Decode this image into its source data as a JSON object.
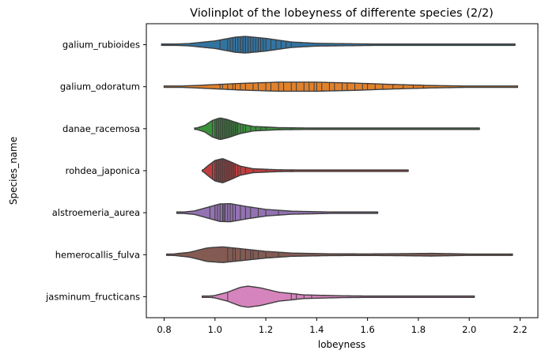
{
  "chart_data": {
    "type": "violin",
    "title": "Violinplot of the lobeyness of differente species (2/2)",
    "xlabel": "lobeyness",
    "ylabel": "Species_name",
    "xlim": [
      0.73,
      2.27
    ],
    "xticks": [
      "0.8",
      "1.0",
      "1.2",
      "1.4",
      "1.6",
      "1.8",
      "2.0",
      "2.2"
    ],
    "inner": "stick",
    "grid": false,
    "outline_color": "#3d3d3d",
    "categories": [
      "galium_rubioides",
      "galium_odoratum",
      "danae_racemosa",
      "rohdea_japonica",
      "alstroemeria_aurea",
      "hemerocallis_fulva",
      "jasminum_fructicans"
    ],
    "series": [
      {
        "category": "galium_rubioides",
        "color": "#3274a1",
        "range": [
          0.79,
          2.18
        ],
        "density": [
          [
            0.79,
            0.0
          ],
          [
            0.9,
            0.08
          ],
          [
            1.0,
            0.25
          ],
          [
            1.08,
            0.5
          ],
          [
            1.12,
            0.55
          ],
          [
            1.2,
            0.42
          ],
          [
            1.3,
            0.18
          ],
          [
            1.4,
            0.09
          ],
          [
            1.6,
            0.05
          ],
          [
            1.8,
            0.03
          ],
          [
            2.0,
            0.02
          ],
          [
            2.18,
            0.0
          ]
        ],
        "points": [
          1.02,
          1.05,
          1.06,
          1.07,
          1.08,
          1.08,
          1.09,
          1.1,
          1.1,
          1.11,
          1.11,
          1.12,
          1.12,
          1.13,
          1.13,
          1.14,
          1.15,
          1.15,
          1.16,
          1.17,
          1.18,
          1.19,
          1.2,
          1.22,
          1.24,
          1.26,
          1.28,
          1.3
        ]
      },
      {
        "category": "galium_odoratum",
        "color": "#e1812c",
        "range": [
          0.8,
          2.19
        ],
        "density": [
          [
            0.8,
            0.0
          ],
          [
            0.95,
            0.1
          ],
          [
            1.1,
            0.22
          ],
          [
            1.25,
            0.3
          ],
          [
            1.4,
            0.3
          ],
          [
            1.55,
            0.24
          ],
          [
            1.7,
            0.15
          ],
          [
            1.85,
            0.08
          ],
          [
            2.0,
            0.04
          ],
          [
            2.19,
            0.0
          ]
        ],
        "points": [
          1.02,
          1.03,
          1.05,
          1.07,
          1.08,
          1.1,
          1.12,
          1.15,
          1.17,
          1.2,
          1.22,
          1.25,
          1.27,
          1.3,
          1.32,
          1.35,
          1.37,
          1.39,
          1.4,
          1.42,
          1.45,
          1.47,
          1.5,
          1.52,
          1.55,
          1.58,
          1.6,
          1.63,
          1.66,
          1.7,
          1.74,
          1.78,
          1.82
        ]
      },
      {
        "category": "danae_racemosa",
        "color": "#3a923a",
        "range": [
          0.92,
          2.04
        ],
        "density": [
          [
            0.92,
            0.0
          ],
          [
            0.96,
            0.22
          ],
          [
            0.99,
            0.55
          ],
          [
            1.02,
            0.72
          ],
          [
            1.05,
            0.6
          ],
          [
            1.1,
            0.32
          ],
          [
            1.15,
            0.15
          ],
          [
            1.25,
            0.07
          ],
          [
            1.4,
            0.04
          ],
          [
            1.6,
            0.03
          ],
          [
            1.8,
            0.02
          ],
          [
            2.04,
            0.0
          ]
        ],
        "points": [
          0.99,
          1.0,
          1.005,
          1.01,
          1.015,
          1.02,
          1.025,
          1.03,
          1.035,
          1.04,
          1.045,
          1.05,
          1.055,
          1.06,
          1.065,
          1.07,
          1.075,
          1.08,
          1.085,
          1.09,
          1.1,
          1.11,
          1.12,
          1.14,
          1.16,
          1.18,
          1.2,
          1.25,
          1.3,
          1.4
        ]
      },
      {
        "category": "rohdea_japonica",
        "color": "#c03d3e",
        "range": [
          0.95,
          1.76
        ],
        "density": [
          [
            0.95,
            0.0
          ],
          [
            0.97,
            0.3
          ],
          [
            1.0,
            0.68
          ],
          [
            1.03,
            0.8
          ],
          [
            1.06,
            0.6
          ],
          [
            1.1,
            0.3
          ],
          [
            1.15,
            0.13
          ],
          [
            1.25,
            0.06
          ],
          [
            1.4,
            0.04
          ],
          [
            1.6,
            0.02
          ],
          [
            1.76,
            0.0
          ]
        ],
        "points": [
          0.99,
          1.0,
          1.005,
          1.01,
          1.015,
          1.02,
          1.025,
          1.03,
          1.035,
          1.04,
          1.045,
          1.05,
          1.055,
          1.06,
          1.065,
          1.07,
          1.075,
          1.08,
          1.09,
          1.1,
          1.12,
          1.15,
          1.2,
          1.3
        ]
      },
      {
        "category": "alstroemeria_aurea",
        "color": "#9372b2",
        "range": [
          0.85,
          1.64
        ],
        "density": [
          [
            0.85,
            0.0
          ],
          [
            0.92,
            0.12
          ],
          [
            0.97,
            0.35
          ],
          [
            1.02,
            0.58
          ],
          [
            1.06,
            0.6
          ],
          [
            1.12,
            0.42
          ],
          [
            1.2,
            0.22
          ],
          [
            1.3,
            0.1
          ],
          [
            1.45,
            0.05
          ],
          [
            1.64,
            0.0
          ]
        ],
        "points": [
          0.98,
          1.0,
          1.01,
          1.02,
          1.03,
          1.035,
          1.04,
          1.05,
          1.06,
          1.07,
          1.08,
          1.1,
          1.12,
          1.14,
          1.17,
          1.2,
          1.25
        ]
      },
      {
        "category": "hemerocallis_fulva",
        "color": "#845b53",
        "range": [
          0.81,
          2.17
        ],
        "density": [
          [
            0.81,
            0.0
          ],
          [
            0.9,
            0.16
          ],
          [
            0.97,
            0.45
          ],
          [
            1.03,
            0.52
          ],
          [
            1.1,
            0.4
          ],
          [
            1.2,
            0.22
          ],
          [
            1.3,
            0.11
          ],
          [
            1.45,
            0.06
          ],
          [
            1.6,
            0.05
          ],
          [
            1.75,
            0.07
          ],
          [
            1.85,
            0.09
          ],
          [
            1.95,
            0.06
          ],
          [
            2.05,
            0.03
          ],
          [
            2.17,
            0.0
          ]
        ],
        "points": [
          1.05,
          1.07,
          1.08,
          1.1,
          1.12,
          1.14,
          1.15,
          1.17,
          1.2,
          1.25
        ]
      },
      {
        "category": "jasminum_fructicans",
        "color": "#d684bd",
        "range": [
          0.95,
          2.02
        ],
        "density": [
          [
            0.95,
            0.0
          ],
          [
            1.0,
            0.08
          ],
          [
            1.05,
            0.3
          ],
          [
            1.1,
            0.62
          ],
          [
            1.13,
            0.7
          ],
          [
            1.18,
            0.58
          ],
          [
            1.25,
            0.3
          ],
          [
            1.35,
            0.12
          ],
          [
            1.5,
            0.06
          ],
          [
            1.7,
            0.03
          ],
          [
            2.02,
            0.0
          ]
        ],
        "points": [
          0.99,
          1.05,
          1.3,
          1.32,
          1.35,
          1.38
        ]
      }
    ]
  }
}
